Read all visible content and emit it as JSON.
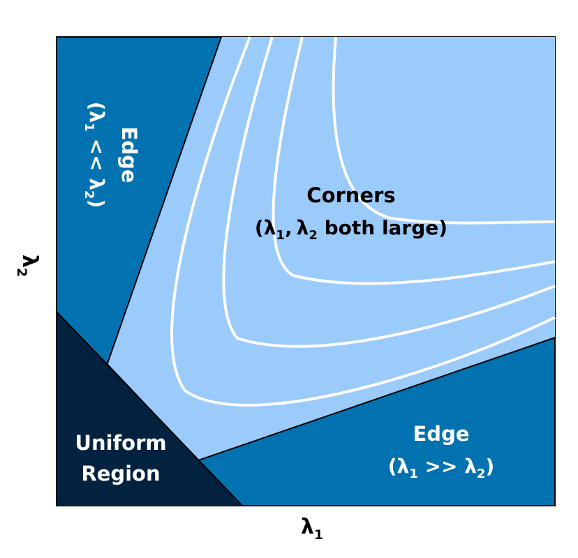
{
  "regions": {
    "corners": {
      "title": "Corners",
      "paren_open": "(",
      "lambda1": "λ",
      "sub1": "1",
      "comma": ",",
      "lambda2": "λ",
      "sub2": "2",
      "suffix": " both large)"
    },
    "edge_top": {
      "title": "Edge",
      "paren_open": "(",
      "lambda1": "λ",
      "sub1": "1",
      "relation": " << ",
      "lambda2": "λ",
      "sub2": "2",
      "paren_close": ")"
    },
    "edge_right": {
      "title": "Edge",
      "paren_open": "(",
      "lambda1": "λ",
      "sub1": "1",
      "relation": " >> ",
      "lambda2": "λ",
      "sub2": "2",
      "paren_close": ")"
    },
    "uniform": {
      "line1": "Uniform",
      "line2": "Region"
    }
  },
  "axes": {
    "x": {
      "symbol": "λ",
      "sub": "1"
    },
    "y": {
      "symbol": "λ",
      "sub": "2"
    }
  },
  "colors": {
    "edge": "#0372b0",
    "corner": "#9acbfb",
    "uniform": "#03223f",
    "contour": "#ffffff",
    "label_dark": "#000000",
    "label_light": "#ffffff"
  }
}
